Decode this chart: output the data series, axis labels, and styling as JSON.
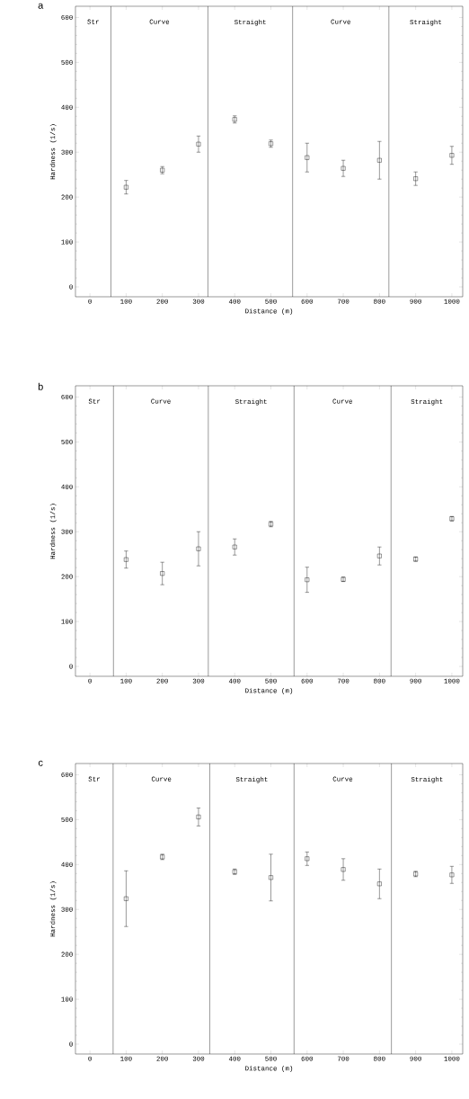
{
  "chart_data": [
    {
      "type": "scatter",
      "title": "a",
      "xlabel": "Distance (m)",
      "ylabel": "Hardness (1/s)",
      "x": [
        100,
        200,
        300,
        400,
        500,
        600,
        700,
        800,
        900,
        1000
      ],
      "marker": "square",
      "xlim": [
        -40,
        1030
      ],
      "ylim": [
        -22,
        625
      ],
      "xticks": [
        0,
        100,
        200,
        300,
        400,
        500,
        600,
        700,
        800,
        900,
        1000
      ],
      "yticks": [
        0,
        100,
        200,
        300,
        400,
        500,
        600
      ],
      "series": [
        {
          "color": "#000000",
          "values": [
            222,
            260,
            318,
            373,
            319,
            288,
            264,
            282,
            241,
            293
          ],
          "errors": [
            15,
            8,
            18,
            8,
            8,
            32,
            18,
            42,
            15,
            20
          ]
        }
      ],
      "ref_lines": [
        {
          "axis": "x",
          "value": 58
        },
        {
          "axis": "x",
          "value": 326
        },
        {
          "axis": "x",
          "value": 560
        },
        {
          "axis": "x",
          "value": 826
        }
      ],
      "annotations": [
        "Str",
        "Curve",
        "Straight",
        "Curve",
        "Straight"
      ]
    },
    {
      "type": "scatter",
      "title": "b",
      "xlabel": "Distance (m)",
      "ylabel": "Hardness (1/s)",
      "x": [
        100,
        200,
        300,
        400,
        500,
        600,
        700,
        800,
        900,
        1000
      ],
      "marker": "square",
      "xlim": [
        -40,
        1030
      ],
      "ylim": [
        -22,
        625
      ],
      "xticks": [
        0,
        100,
        200,
        300,
        400,
        500,
        600,
        700,
        800,
        900,
        1000
      ],
      "yticks": [
        0,
        100,
        200,
        300,
        400,
        500,
        600
      ],
      "series": [
        {
          "color": "#000000",
          "values": [
            238,
            207,
            262,
            266,
            317,
            193,
            194,
            246,
            239,
            329
          ],
          "errors": [
            19,
            25,
            38,
            18,
            6,
            28,
            5,
            20,
            5,
            5
          ]
        }
      ],
      "ref_lines": [
        {
          "axis": "x",
          "value": 65
        },
        {
          "axis": "x",
          "value": 327
        },
        {
          "axis": "x",
          "value": 564
        },
        {
          "axis": "x",
          "value": 832
        }
      ],
      "annotations": [
        "Str",
        "Curve",
        "Straight",
        "Curve",
        "Straight"
      ]
    },
    {
      "type": "scatter",
      "title": "c",
      "xlabel": "Distance (m)",
      "ylabel": "Hardness (1/s)",
      "x": [
        100,
        200,
        300,
        400,
        500,
        600,
        700,
        800,
        900,
        1000
      ],
      "marker": "square",
      "xlim": [
        -40,
        1030
      ],
      "ylim": [
        -22,
        625
      ],
      "xticks": [
        0,
        100,
        200,
        300,
        400,
        500,
        600,
        700,
        800,
        900,
        1000
      ],
      "yticks": [
        0,
        100,
        200,
        300,
        400,
        500,
        600
      ],
      "series": [
        {
          "color": "#000000",
          "values": [
            324,
            417,
            506,
            384,
            371,
            413,
            389,
            357,
            379,
            377
          ],
          "errors": [
            62,
            6,
            20,
            6,
            52,
            15,
            24,
            33,
            6,
            19
          ]
        }
      ],
      "ref_lines": [
        {
          "axis": "x",
          "value": 64
        },
        {
          "axis": "x",
          "value": 331
        },
        {
          "axis": "x",
          "value": 564
        },
        {
          "axis": "x",
          "value": 833
        }
      ],
      "annotations": [
        "Str",
        "Curve",
        "Straight",
        "Curve",
        "Straight"
      ]
    }
  ]
}
